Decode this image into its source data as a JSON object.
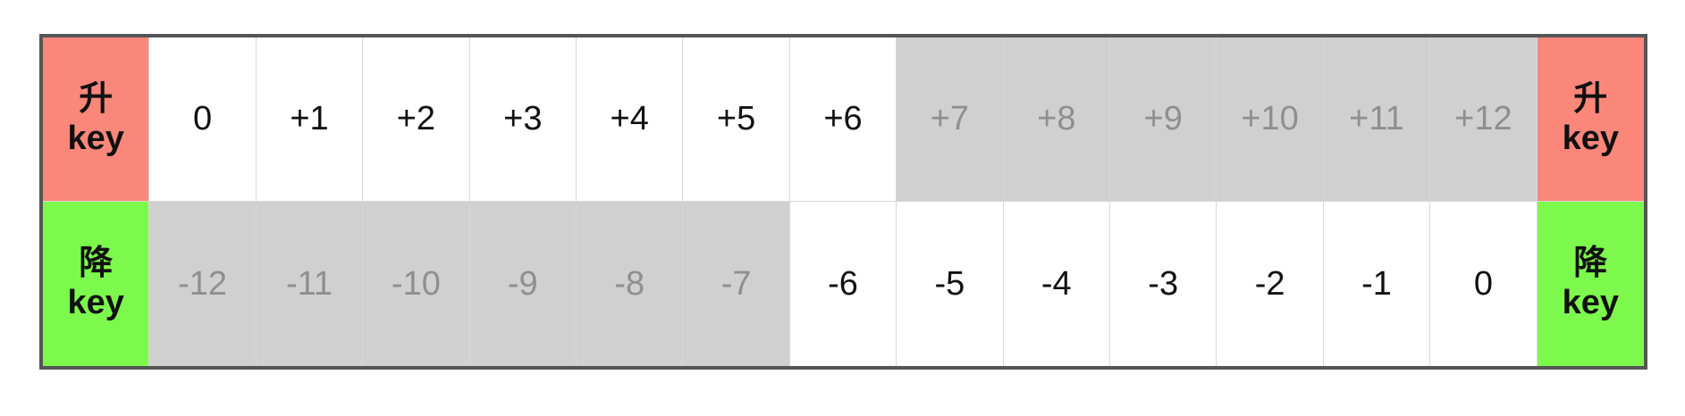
{
  "colors": {
    "up_header": "#fb877b",
    "down_header": "#7df94d",
    "inactive_cell": "#d0d0d0",
    "inactive_text": "#8f8f8f",
    "frame": "#555555"
  },
  "rows": [
    {
      "header": {
        "zh": "升",
        "en": "key"
      },
      "values": [
        "0",
        "+1",
        "+2",
        "+3",
        "+4",
        "+5",
        "+6",
        "+7",
        "+8",
        "+9",
        "+10",
        "+11",
        "+12"
      ],
      "active": [
        true,
        true,
        true,
        true,
        true,
        true,
        true,
        false,
        false,
        false,
        false,
        false,
        false
      ]
    },
    {
      "header": {
        "zh": "降",
        "en": "key"
      },
      "values": [
        "-12",
        "-11",
        "-10",
        "-9",
        "-8",
        "-7",
        "-6",
        "-5",
        "-4",
        "-3",
        "-2",
        "-1",
        "0"
      ],
      "active": [
        false,
        false,
        false,
        false,
        false,
        false,
        true,
        true,
        true,
        true,
        true,
        true,
        true
      ]
    }
  ]
}
